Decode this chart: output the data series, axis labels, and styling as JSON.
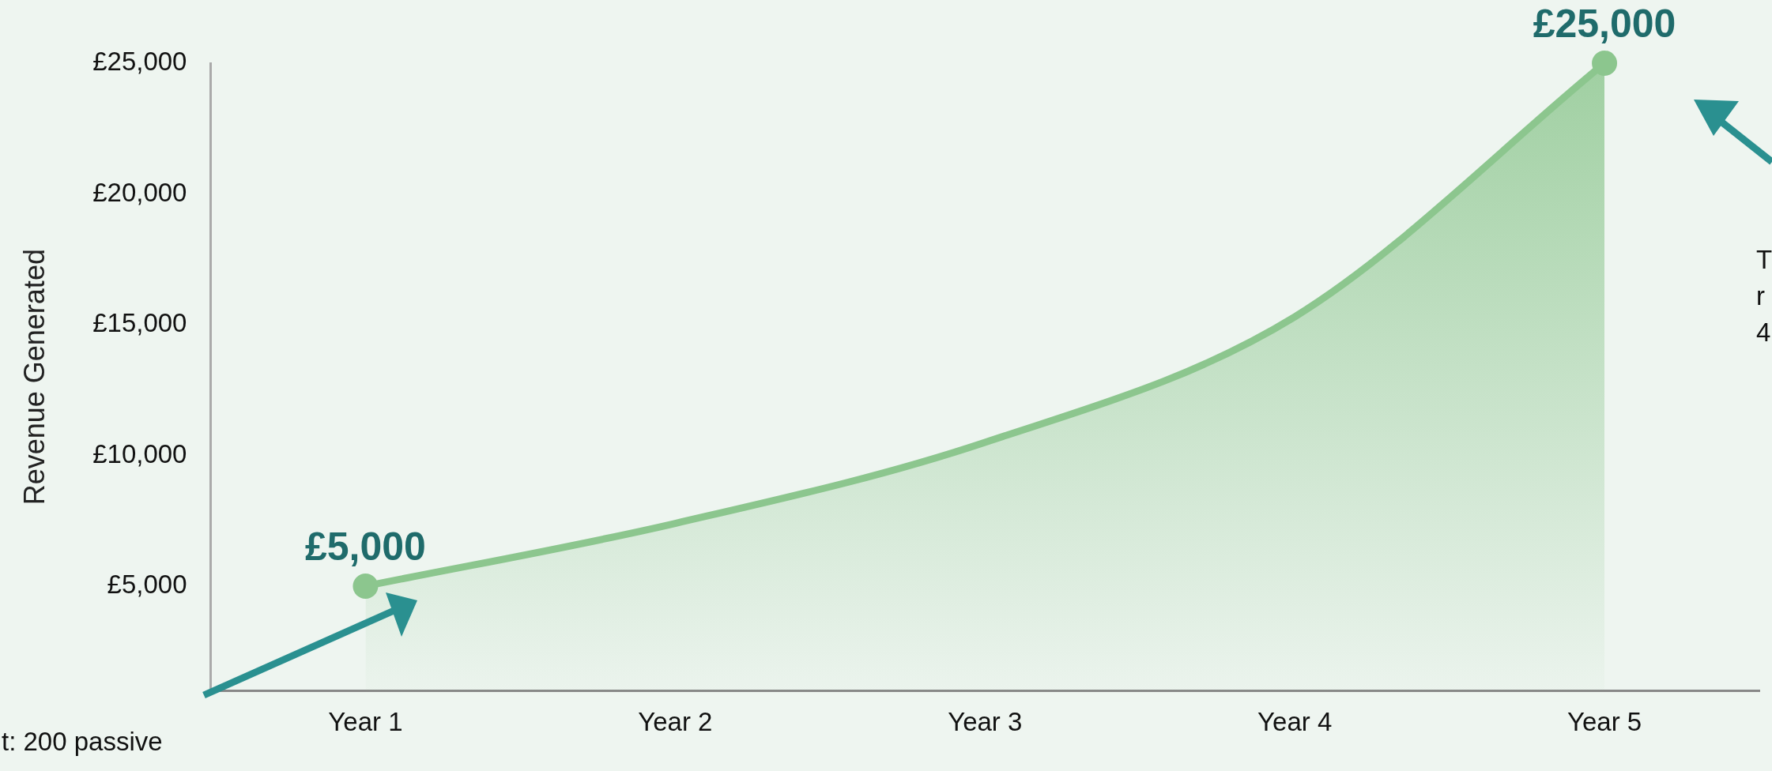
{
  "chart_data": {
    "type": "area",
    "ylabel": "Revenue Generated",
    "categories": [
      "Year 1",
      "Year 2",
      "Year 3",
      "Year 4",
      "Year 5"
    ],
    "series": [
      {
        "color": "#8cc68e",
        "values": [
          5000,
          7400,
          10500,
          15300,
          25000
        ],
        "value_labels": [
          "£5,000",
          null,
          null,
          null,
          "£25,000"
        ]
      }
    ],
    "ylim": [
      1000,
      25000
    ],
    "yticks": [
      {
        "value": 5000,
        "label": "£5,000"
      },
      {
        "value": 10000,
        "label": "£10,000"
      },
      {
        "value": 15000,
        "label": "£15,000"
      },
      {
        "value": 20000,
        "label": "£20,000"
      },
      {
        "value": 25000,
        "label": "£25,000"
      }
    ],
    "grid": false,
    "legend": false,
    "line_style": "solid",
    "annotations": [
      "t: 200 passive",
      "T\nr\n4"
    ]
  }
}
